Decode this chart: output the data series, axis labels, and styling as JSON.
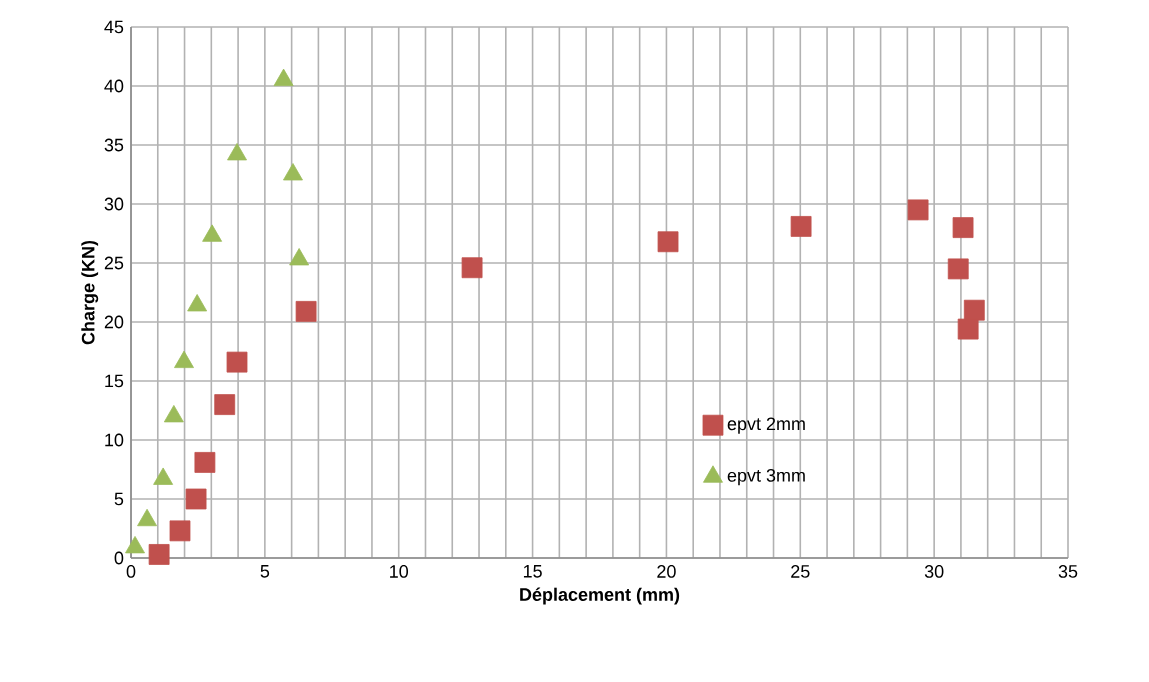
{
  "chart_data": {
    "type": "scatter",
    "xlabel": "Déplacement (mm)",
    "ylabel": "Charge (KN)",
    "xlim": [
      0,
      35
    ],
    "ylim": [
      0,
      45
    ],
    "xticks": [
      0,
      {
        "value": 1,
        "label": null
      },
      {
        "value": 2,
        "label": null
      },
      {
        "value": 3,
        "label": null
      },
      {
        "value": 4,
        "label": null
      },
      5,
      {
        "value": 6,
        "label": null
      },
      {
        "value": 7,
        "label": null
      },
      {
        "value": 8,
        "label": null
      },
      {
        "value": 9,
        "label": null
      },
      10,
      {
        "value": 11,
        "label": null
      },
      {
        "value": 12,
        "label": null
      },
      {
        "value": 13,
        "label": null
      },
      {
        "value": 14,
        "label": null
      },
      15,
      {
        "value": 16,
        "label": null
      },
      {
        "value": 17,
        "label": null
      },
      {
        "value": 18,
        "label": null
      },
      {
        "value": 19,
        "label": null
      },
      20,
      {
        "value": 21,
        "label": null
      },
      {
        "value": 22,
        "label": null
      },
      {
        "value": 23,
        "label": null
      },
      {
        "value": 24,
        "label": null
      },
      25,
      {
        "value": 26,
        "label": null
      },
      {
        "value": 27,
        "label": null
      },
      {
        "value": 28,
        "label": null
      },
      {
        "value": 29,
        "label": null
      },
      30,
      {
        "value": 31,
        "label": null
      },
      {
        "value": 32,
        "label": null
      },
      {
        "value": 33,
        "label": null
      },
      {
        "value": 34,
        "label": null
      },
      35
    ],
    "yticks": [
      0,
      5,
      10,
      15,
      20,
      25,
      30,
      35,
      40,
      45
    ],
    "grid": true,
    "legend": "right",
    "series": [
      {
        "name": "epvt 2mm",
        "color": "#c0504d",
        "marker": "square",
        "x": [
          1.05,
          1.83,
          2.43,
          2.76,
          3.5,
          3.96,
          6.54,
          12.74,
          20.06,
          25.03,
          29.4,
          31.08,
          30.9,
          31.5,
          31.27
        ],
        "values": [
          0.3,
          2.3,
          5.0,
          8.1,
          13.0,
          16.6,
          20.9,
          24.6,
          26.8,
          28.1,
          29.5,
          28.0,
          24.5,
          21.0,
          19.4
        ]
      },
      {
        "name": "epvt 3mm",
        "color": "#9bbb59",
        "marker": "triangle",
        "x": [
          0.15,
          0.6,
          1.2,
          1.6,
          1.98,
          2.47,
          3.03,
          3.96,
          5.7,
          6.05,
          6.28
        ],
        "values": [
          0.9,
          3.2,
          6.7,
          12.0,
          16.6,
          21.4,
          27.3,
          34.2,
          40.5,
          32.5,
          25.3
        ]
      }
    ]
  }
}
